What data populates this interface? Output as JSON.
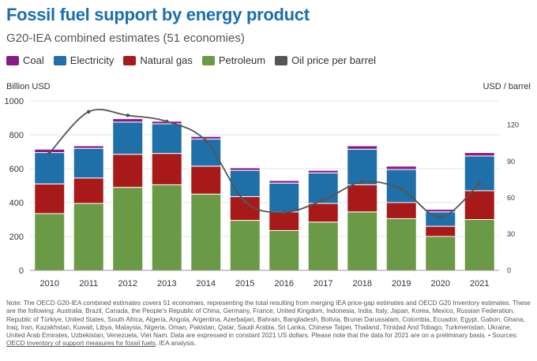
{
  "title": "Fossil fuel support by energy product",
  "subtitle": "G20-IEA combined estimates (51 economies)",
  "legend": [
    {
      "label": "Coal",
      "color": "#8b1a89"
    },
    {
      "label": "Electricity",
      "color": "#1f6fa8"
    },
    {
      "label": "Natural gas",
      "color": "#a81a1a"
    },
    {
      "label": "Petroleum",
      "color": "#6a9a45"
    },
    {
      "label": "Oil price per barrel",
      "color": "#555555"
    }
  ],
  "left_axis_unit": "Billion USD",
  "right_axis_unit": "USD / barrel",
  "chart_data": {
    "type": "bar",
    "stacked": true,
    "categories": [
      "2010",
      "2011",
      "2012",
      "2013",
      "2014",
      "2015",
      "2016",
      "2017",
      "2018",
      "2019",
      "2020",
      "2021"
    ],
    "series": [
      {
        "name": "Petroleum",
        "color": "#6a9a45",
        "values": [
          335,
          395,
          490,
          505,
          450,
          295,
          235,
          285,
          345,
          305,
          200,
          300
        ]
      },
      {
        "name": "Natural gas",
        "color": "#a81a1a",
        "values": [
          175,
          150,
          195,
          185,
          165,
          140,
          110,
          110,
          160,
          95,
          60,
          170
        ]
      },
      {
        "name": "Electricity",
        "color": "#1f6fa8",
        "values": [
          185,
          175,
          190,
          175,
          160,
          155,
          170,
          180,
          210,
          195,
          85,
          205
        ]
      },
      {
        "name": "Coal",
        "color": "#8b1a89",
        "values": [
          20,
          15,
          20,
          15,
          15,
          15,
          15,
          15,
          20,
          20,
          15,
          20
        ]
      }
    ],
    "line_series": {
      "name": "Oil price per barrel",
      "color": "#555555",
      "values": [
        97,
        131,
        128,
        123,
        107,
        57,
        48,
        58,
        73,
        67,
        44,
        72
      ]
    },
    "ylim": [
      0,
      1000
    ],
    "yticks": [
      0,
      200,
      400,
      600,
      800,
      1000
    ],
    "y2lim": [
      0,
      140
    ],
    "y2ticks": [
      0,
      30,
      60,
      90,
      120
    ],
    "xlabel": "",
    "ylabel": "Billion USD",
    "y2label": "USD / barrel",
    "grid": true,
    "legend_position": "top-left"
  },
  "footnote": {
    "text": "Note: The OECD G20-IEA combined estimates covers 51 economies, representing the total resulting from merging IEA price-gap estimates and OECD G20 Inventory estimates. These are the following: Australia, Brazil, Canada, the People's Republic of China, Germany, France, United Kingdom, Indonesia, India, Italy, Japan, Korea, Mexico, Russian Federation, Republic of Türkiye, United States, South Africa, Algeria, Angola, Argentina, Azerbaijan, Bahrain, Bangladesh, Bolivia, Brunei Darussalam, Colombia, Ecuador, Egypt, Gabon, Ghana, Iraq, Iran, Kazakhstan, Kuwait, Libya, Malaysia, Nigeria, Oman, Pakistan, Qatar, Saudi Arabia, Sri Lanka, Chinese Taipei, Thailand, Trinidad And Tobago, Turkmenistan, Ukraine, United Arab Emirates, Uzbekistan, Venezuela, Viet Nam. Data are expressed in constant 2021 US dollars. Please note that the data for 2021 are on a preliminary basis. • Sources: ",
    "link": "OECD Inventory of support measures for fossil fuels",
    "tail": ", IEA analysis."
  }
}
